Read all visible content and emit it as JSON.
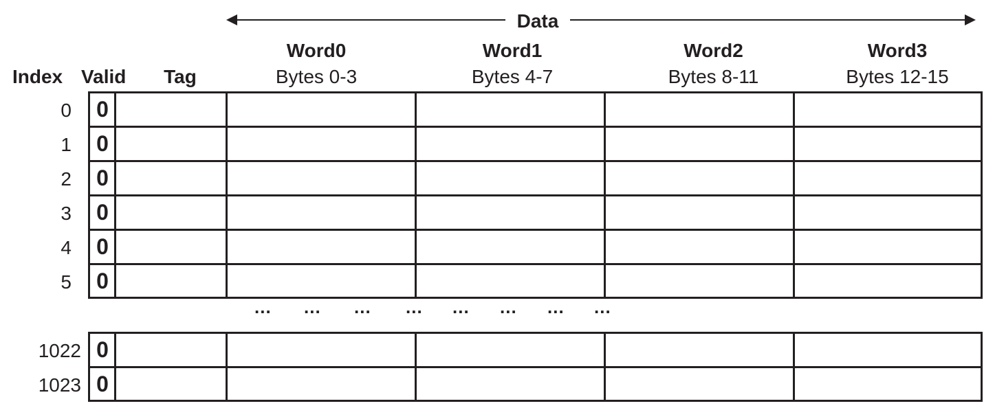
{
  "header": {
    "data_label": "Data",
    "index_label": "Index",
    "valid_label": "Valid",
    "tag_label": "Tag",
    "words": [
      {
        "name": "Word0",
        "bytes": "Bytes 0-3"
      },
      {
        "name": "Word1",
        "bytes": "Bytes 4-7"
      },
      {
        "name": "Word2",
        "bytes": "Bytes 8-11"
      },
      {
        "name": "Word3",
        "bytes": "Bytes 12-15"
      }
    ]
  },
  "top_rows": [
    {
      "index": "0",
      "valid": "0"
    },
    {
      "index": "1",
      "valid": "0"
    },
    {
      "index": "2",
      "valid": "0"
    },
    {
      "index": "3",
      "valid": "0"
    },
    {
      "index": "4",
      "valid": "0"
    },
    {
      "index": "5",
      "valid": "0"
    }
  ],
  "bottom_rows": [
    {
      "index": "1022",
      "valid": "0"
    },
    {
      "index": "1023",
      "valid": "0"
    }
  ],
  "ellipsis": "...",
  "colors": {
    "line": "#231f20",
    "background": "#ffffff"
  }
}
